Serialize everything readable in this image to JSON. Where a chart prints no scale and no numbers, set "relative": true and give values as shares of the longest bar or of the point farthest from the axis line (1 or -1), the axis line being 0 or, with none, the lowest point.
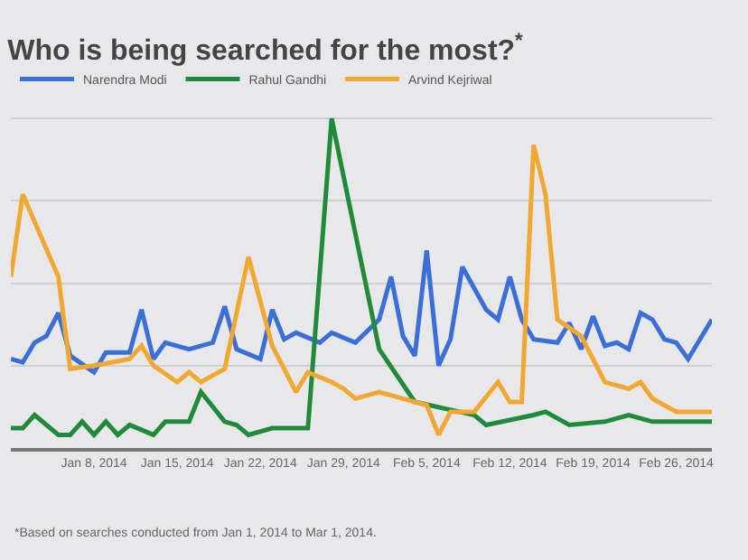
{
  "chart_data": {
    "type": "line",
    "title": "Who is being searched for the most?$^{*}$",
    "relative": true,
    "grid": "y",
    "legend": "top left",
    "xlim": [
      "2014-01-01",
      "2014-03-01"
    ],
    "xticks": [
      {
        "value": "2014-01-08",
        "label": "Jan 8, 2014"
      },
      {
        "value": "2014-01-15",
        "label": "Jan 15, 2014"
      },
      {
        "value": "2014-01-22",
        "label": "Jan 22, 2014"
      },
      {
        "value": "2014-01-29",
        "label": "Jan 29, 2014"
      },
      {
        "value": "2014-02-05",
        "label": "Feb 5, 2014"
      },
      {
        "value": "2014-02-12",
        "label": "Feb 12, 2014"
      },
      {
        "value": "2014-02-19",
        "label": "Feb 19, 2014"
      },
      {
        "value": "2014-02-26",
        "label": "Feb 26, 2014"
      }
    ],
    "annotations": [
      "*Based on searches conducted from Jan 1, 2014 to Mar 1, 2014."
    ],
    "series": [
      {
        "name": "Narendra Modi",
        "color": "#3b6fd8",
        "x": [
          "2014-01-01",
          "2014-01-02",
          "2014-01-03",
          "2014-01-04",
          "2014-01-05",
          "2014-01-06",
          "2014-01-08",
          "2014-01-09",
          "2014-01-11",
          "2014-01-12",
          "2014-01-13",
          "2014-01-14",
          "2014-01-16",
          "2014-01-18",
          "2014-01-19",
          "2014-01-20",
          "2014-01-22",
          "2014-01-23",
          "2014-01-24",
          "2014-01-25",
          "2014-01-27",
          "2014-01-28",
          "2014-01-30",
          "2014-02-01",
          "2014-02-02",
          "2014-02-03",
          "2014-02-04",
          "2014-02-05",
          "2014-02-06",
          "2014-02-07",
          "2014-02-08",
          "2014-02-10",
          "2014-02-11",
          "2014-02-12",
          "2014-02-13",
          "2014-02-14",
          "2014-02-16",
          "2014-02-17",
          "2014-02-18",
          "2014-02-19",
          "2014-02-20",
          "2014-02-21",
          "2014-02-22",
          "2014-02-23",
          "2014-02-24",
          "2014-02-25",
          "2014-02-26",
          "2014-02-27",
          "2014-03-01"
        ],
        "values": [
          0.27,
          0.26,
          0.32,
          0.34,
          0.41,
          0.28,
          0.23,
          0.29,
          0.29,
          0.42,
          0.27,
          0.32,
          0.3,
          0.32,
          0.43,
          0.3,
          0.27,
          0.42,
          0.33,
          0.35,
          0.32,
          0.35,
          0.32,
          0.39,
          0.52,
          0.34,
          0.28,
          0.6,
          0.25,
          0.33,
          0.55,
          0.42,
          0.39,
          0.52,
          0.39,
          0.33,
          0.32,
          0.38,
          0.3,
          0.4,
          0.31,
          0.32,
          0.3,
          0.41,
          0.39,
          0.33,
          0.32,
          0.27,
          0.39
        ]
      },
      {
        "name": "Rahul Gandhi",
        "color": "#1f8a3a",
        "x": [
          "2014-01-01",
          "2014-01-02",
          "2014-01-03",
          "2014-01-05",
          "2014-01-06",
          "2014-01-07",
          "2014-01-08",
          "2014-01-09",
          "2014-01-10",
          "2014-01-11",
          "2014-01-13",
          "2014-01-14",
          "2014-01-16",
          "2014-01-17",
          "2014-01-19",
          "2014-01-20",
          "2014-01-21",
          "2014-01-23",
          "2014-01-26",
          "2014-01-28",
          "2014-02-01",
          "2014-02-04",
          "2014-02-09",
          "2014-02-10",
          "2014-02-14",
          "2014-02-15",
          "2014-02-17",
          "2014-02-20",
          "2014-02-22",
          "2014-02-24",
          "2014-03-01"
        ],
        "values": [
          0.06,
          0.06,
          0.1,
          0.04,
          0.04,
          0.08,
          0.04,
          0.08,
          0.04,
          0.07,
          0.04,
          0.08,
          0.08,
          0.17,
          0.08,
          0.07,
          0.04,
          0.06,
          0.06,
          1,
          0.3,
          0.14,
          0.1,
          0.07,
          0.1,
          0.11,
          0.07,
          0.08,
          0.1,
          0.08,
          0.08
        ]
      },
      {
        "name": "Arvind Kejriwal",
        "color": "#f0a830",
        "x": [
          "2014-01-01",
          "2014-01-02",
          "2014-01-05",
          "2014-01-06",
          "2014-01-08",
          "2014-01-11",
          "2014-01-12",
          "2014-01-13",
          "2014-01-15",
          "2014-01-16",
          "2014-01-17",
          "2014-01-19",
          "2014-01-21",
          "2014-01-23",
          "2014-01-25",
          "2014-01-26",
          "2014-01-28",
          "2014-01-29",
          "2014-01-30",
          "2014-02-01",
          "2014-02-03",
          "2014-02-05",
          "2014-02-06",
          "2014-02-07",
          "2014-02-09",
          "2014-02-11",
          "2014-02-12",
          "2014-02-13",
          "2014-02-14",
          "2014-02-15",
          "2014-02-16",
          "2014-02-18",
          "2014-02-20",
          "2014-02-22",
          "2014-02-23",
          "2014-02-24",
          "2014-02-26",
          "2014-03-01"
        ],
        "values": [
          0.52,
          0.77,
          0.52,
          0.24,
          0.25,
          0.27,
          0.31,
          0.25,
          0.2,
          0.23,
          0.2,
          0.24,
          0.58,
          0.31,
          0.17,
          0.23,
          0.2,
          0.18,
          0.15,
          0.17,
          0.15,
          0.13,
          0.04,
          0.11,
          0.11,
          0.2,
          0.14,
          0.14,
          0.92,
          0.77,
          0.39,
          0.34,
          0.2,
          0.18,
          0.2,
          0.15,
          0.11,
          0.11
        ]
      }
    ]
  }
}
